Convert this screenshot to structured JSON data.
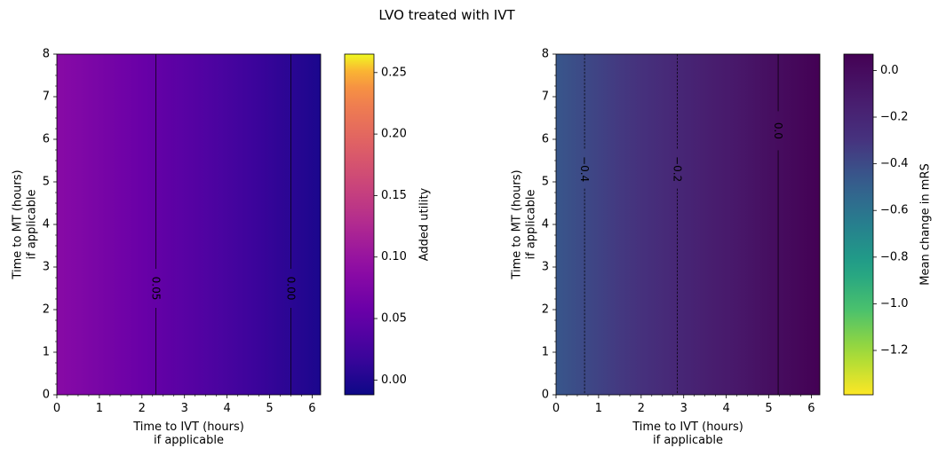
{
  "title": "LVO treated with IVT",
  "chart_data": [
    {
      "type": "heatmap",
      "xlabel": [
        "Time to IVT (hours)",
        "if applicable"
      ],
      "ylabel": [
        "Time to MT (hours)",
        "if applicable"
      ],
      "xlim": [
        0,
        6.2
      ],
      "ylim": [
        0,
        8
      ],
      "x_ticks": [
        0,
        1,
        2,
        3,
        4,
        5,
        6
      ],
      "y_ticks": [
        0,
        1,
        2,
        3,
        4,
        5,
        6,
        7,
        8
      ],
      "colormap": "plasma",
      "colorbar_label": "Added utility",
      "colorbar_range": [
        -0.012,
        0.265
      ],
      "colorbar_ticks": [
        0.0,
        0.05,
        0.1,
        0.15,
        0.2,
        0.25
      ],
      "colorbar_tick_labels": [
        "0.00",
        "0.05",
        "0.10",
        "0.15",
        "0.20",
        "0.25"
      ],
      "gradient_x": [
        0,
        6.2
      ],
      "gradient_values": [
        0.085,
        -0.003
      ],
      "contours": [
        {
          "x": 2.33,
          "label": "0.05",
          "label_y": 2.5,
          "style": "solid"
        },
        {
          "x": 5.5,
          "label": "0.00",
          "label_y": 2.5,
          "style": "solid"
        }
      ]
    },
    {
      "type": "heatmap",
      "xlabel": [
        "Time to IVT (hours)",
        "if applicable"
      ],
      "ylabel": [
        "Time to MT (hours)",
        "if applicable"
      ],
      "xlim": [
        0,
        6.2
      ],
      "ylim": [
        0,
        8
      ],
      "x_ticks": [
        0,
        1,
        2,
        3,
        4,
        5,
        6
      ],
      "y_ticks": [
        0,
        1,
        2,
        3,
        4,
        5,
        6,
        7,
        8
      ],
      "colormap": "viridis_r",
      "colorbar_label": "Mean change in mRS",
      "colorbar_range": [
        -1.39,
        0.07
      ],
      "colorbar_ticks": [
        0.0,
        -0.2,
        -0.4,
        -0.6,
        -0.8,
        -1.0,
        -1.2
      ],
      "colorbar_tick_labels": [
        "0.0",
        "−0.2",
        "−0.4",
        "−0.6",
        "−0.8",
        "−1.0",
        "−1.2"
      ],
      "gradient_x": [
        0,
        6.2
      ],
      "gradient_values": [
        -0.45,
        0.07
      ],
      "contours": [
        {
          "x": 0.67,
          "label": "−0.4",
          "label_y": 5.3,
          "style": "dashed"
        },
        {
          "x": 2.85,
          "label": "−0.2",
          "label_y": 5.3,
          "style": "dashed"
        },
        {
          "x": 5.22,
          "label": "0.0",
          "label_y": 6.2,
          "style": "solid"
        }
      ]
    }
  ]
}
